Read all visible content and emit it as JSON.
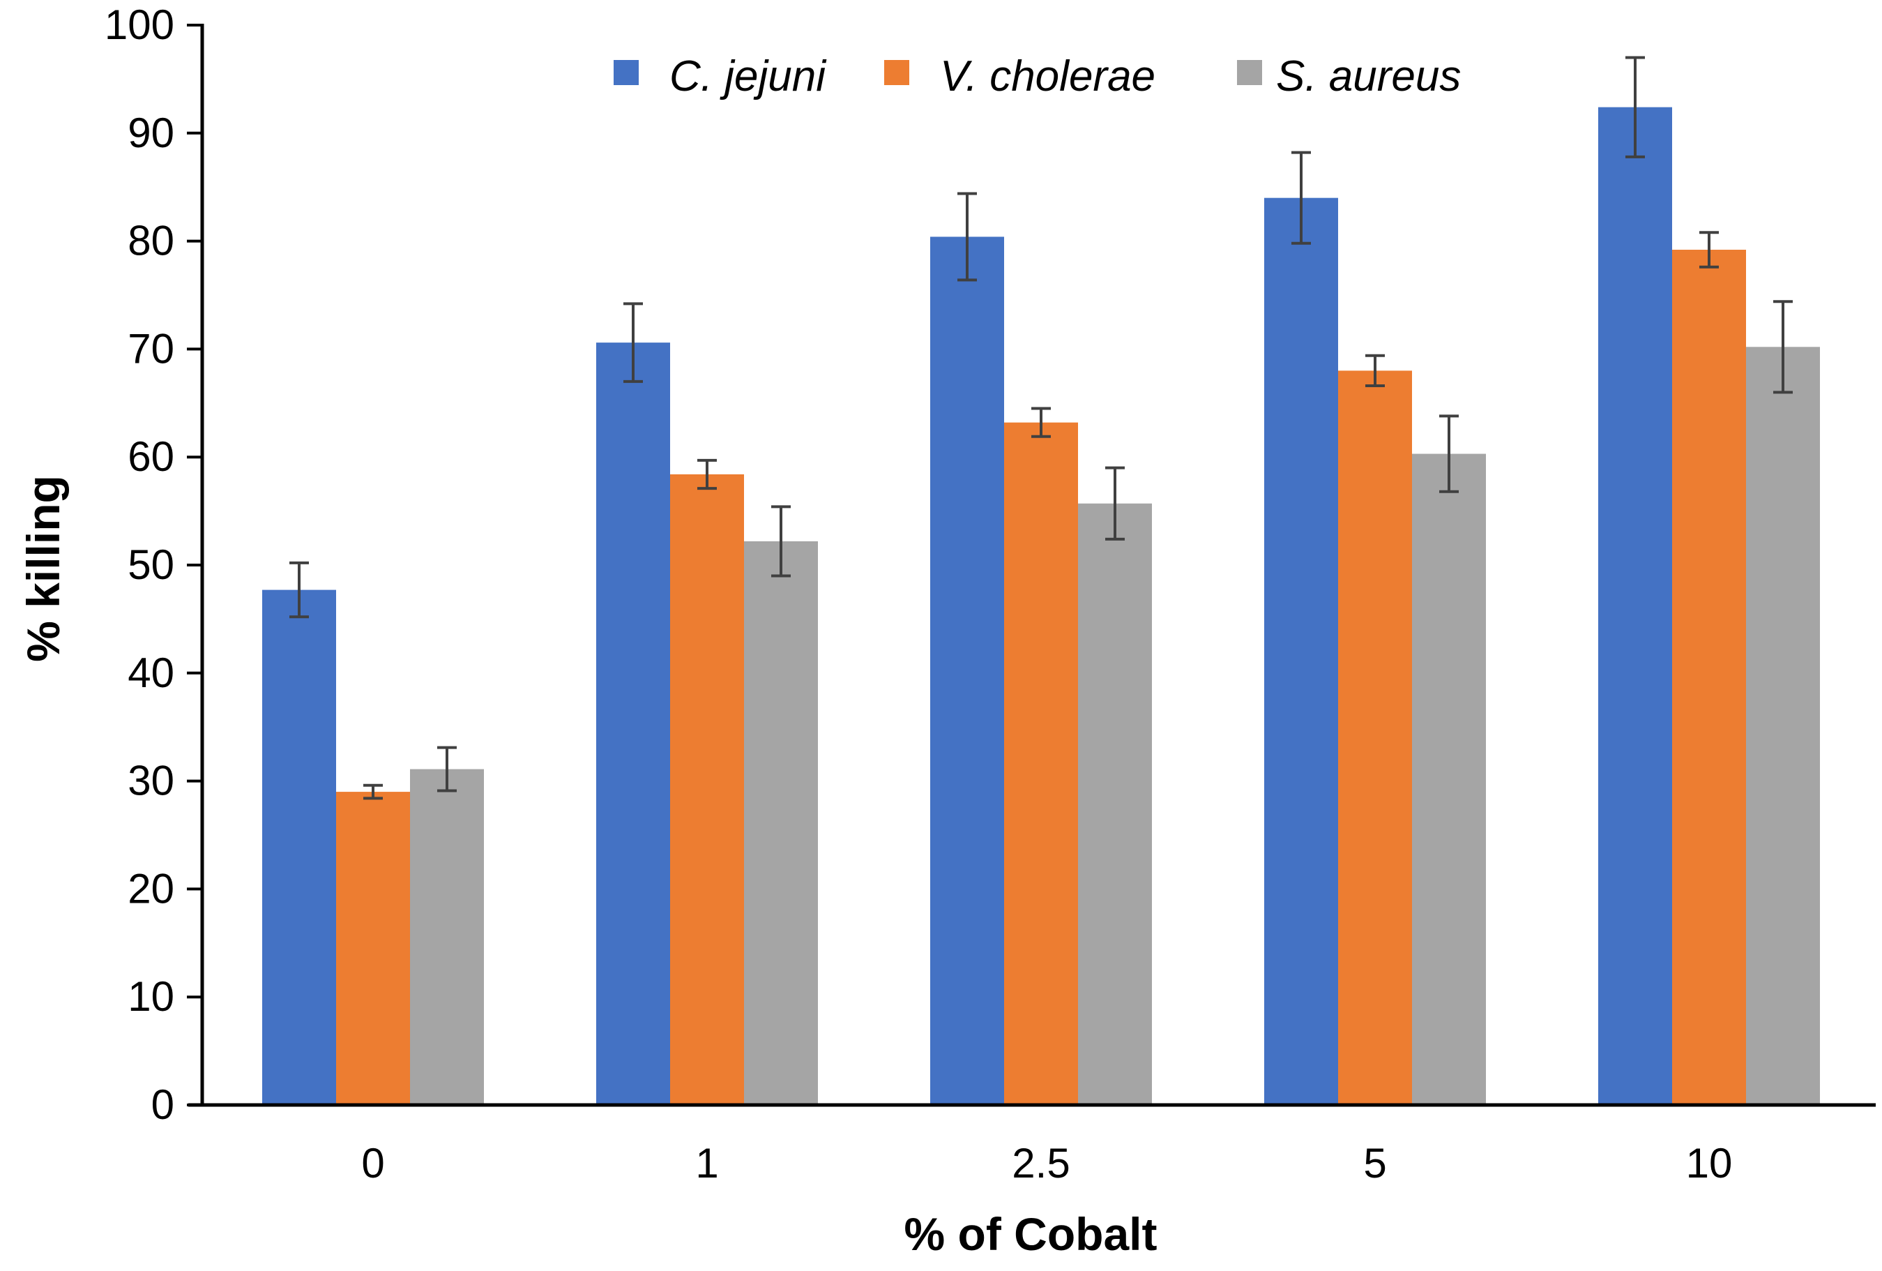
{
  "chart_data": {
    "type": "bar",
    "title": "",
    "xlabel": "% of Cobalt",
    "ylabel": "% killing",
    "ylim": [
      0,
      100
    ],
    "yticks": [
      0,
      10,
      20,
      30,
      40,
      50,
      60,
      70,
      80,
      90,
      100
    ],
    "grid": false,
    "legend_position": "top",
    "categories": [
      "0",
      "1",
      "2.5",
      "5",
      "10"
    ],
    "series": [
      {
        "name": "C. jejuni",
        "color": "#4472C4",
        "values": [
          47.7,
          70.6,
          80.4,
          84.0,
          92.4
        ],
        "errors": [
          2.5,
          3.6,
          4.0,
          4.2,
          4.6
        ]
      },
      {
        "name": "V. cholerae",
        "color": "#ED7D31",
        "values": [
          29.0,
          58.4,
          63.2,
          68.0,
          79.2
        ],
        "errors": [
          0.6,
          1.3,
          1.3,
          1.4,
          1.6
        ]
      },
      {
        "name": "S. aureus",
        "color": "#A5A5A5",
        "values": [
          31.1,
          52.2,
          55.7,
          60.3,
          70.2
        ],
        "errors": [
          2.0,
          3.2,
          3.3,
          3.5,
          4.2
        ]
      }
    ]
  }
}
